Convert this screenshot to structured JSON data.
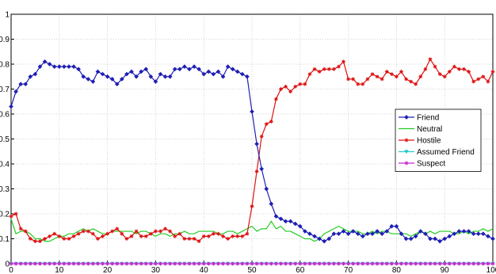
{
  "chart_data": {
    "type": "line",
    "title": "",
    "xlabel": "",
    "ylabel": "",
    "xlim": [
      0,
      100
    ],
    "ylim": [
      0,
      1
    ],
    "grid": true,
    "legend_position": "right",
    "x_ticks": [
      0,
      10,
      20,
      30,
      40,
      50,
      60,
      70,
      80,
      90,
      100
    ],
    "y_ticks": [
      0,
      0.1,
      0.2,
      0.3,
      0.4,
      0.5,
      0.6,
      0.7,
      0.8,
      0.9,
      1
    ],
    "x_tick_labels": [
      "0",
      "10",
      "20",
      "30",
      "40",
      "50",
      "60",
      "70",
      "80",
      "90",
      "100"
    ],
    "y_tick_labels": [
      "0",
      "0.1",
      "0.2",
      "0.3",
      "0.4",
      "0.5",
      "0.6",
      "0.7",
      "0.8",
      "0.9",
      "1"
    ],
    "x": [
      0,
      1,
      2,
      3,
      4,
      5,
      6,
      7,
      8,
      9,
      10,
      11,
      12,
      13,
      14,
      15,
      16,
      17,
      18,
      19,
      20,
      21,
      22,
      23,
      24,
      25,
      26,
      27,
      28,
      29,
      30,
      31,
      32,
      33,
      34,
      35,
      36,
      37,
      38,
      39,
      40,
      41,
      42,
      43,
      44,
      45,
      46,
      47,
      48,
      49,
      50,
      51,
      52,
      53,
      54,
      55,
      56,
      57,
      58,
      59,
      60,
      61,
      62,
      63,
      64,
      65,
      66,
      67,
      68,
      69,
      70,
      71,
      72,
      73,
      74,
      75,
      76,
      77,
      78,
      79,
      80,
      81,
      82,
      83,
      84,
      85,
      86,
      87,
      88,
      89,
      90,
      91,
      92,
      93,
      94,
      95,
      96,
      97,
      98,
      99,
      100
    ],
    "series": [
      {
        "name": "Friend",
        "color": "#1f1fb4",
        "marker": "diamond",
        "values": [
          0.63,
          0.69,
          0.72,
          0.72,
          0.75,
          0.76,
          0.79,
          0.81,
          0.8,
          0.79,
          0.79,
          0.79,
          0.79,
          0.79,
          0.78,
          0.75,
          0.74,
          0.73,
          0.77,
          0.76,
          0.75,
          0.74,
          0.72,
          0.74,
          0.76,
          0.77,
          0.75,
          0.77,
          0.78,
          0.75,
          0.73,
          0.76,
          0.75,
          0.75,
          0.78,
          0.78,
          0.79,
          0.78,
          0.79,
          0.78,
          0.76,
          0.77,
          0.76,
          0.77,
          0.75,
          0.79,
          0.78,
          0.77,
          0.76,
          0.75,
          0.61,
          0.48,
          0.38,
          0.3,
          0.24,
          0.19,
          0.18,
          0.17,
          0.17,
          0.16,
          0.15,
          0.13,
          0.12,
          0.11,
          0.1,
          0.09,
          0.1,
          0.12,
          0.12,
          0.13,
          0.12,
          0.13,
          0.12,
          0.11,
          0.12,
          0.12,
          0.13,
          0.12,
          0.13,
          0.15,
          0.15,
          0.12,
          0.1,
          0.1,
          0.11,
          0.13,
          0.12,
          0.1,
          0.1,
          0.09,
          0.1,
          0.11,
          0.12,
          0.13,
          0.13,
          0.13,
          0.12,
          0.12,
          0.12,
          0.11,
          0.1
        ]
      },
      {
        "name": "Neutral",
        "color": "#22cc22",
        "marker": "none",
        "values": [
          0.18,
          0.12,
          0.13,
          0.13,
          0.12,
          0.1,
          0.1,
          0.09,
          0.09,
          0.1,
          0.11,
          0.11,
          0.12,
          0.12,
          0.13,
          0.14,
          0.13,
          0.14,
          0.13,
          0.12,
          0.12,
          0.13,
          0.13,
          0.13,
          0.13,
          0.13,
          0.12,
          0.13,
          0.13,
          0.12,
          0.11,
          0.12,
          0.12,
          0.11,
          0.12,
          0.12,
          0.13,
          0.12,
          0.12,
          0.13,
          0.13,
          0.13,
          0.13,
          0.12,
          0.12,
          0.13,
          0.13,
          0.12,
          0.13,
          0.14,
          0.15,
          0.13,
          0.14,
          0.14,
          0.17,
          0.14,
          0.15,
          0.13,
          0.13,
          0.12,
          0.11,
          0.1,
          0.1,
          0.09,
          0.1,
          0.12,
          0.13,
          0.14,
          0.15,
          0.14,
          0.13,
          0.13,
          0.13,
          0.12,
          0.12,
          0.13,
          0.12,
          0.13,
          0.13,
          0.12,
          0.12,
          0.12,
          0.12,
          0.11,
          0.12,
          0.13,
          0.12,
          0.13,
          0.12,
          0.13,
          0.13,
          0.13,
          0.12,
          0.12,
          0.13,
          0.12,
          0.13,
          0.13,
          0.14,
          0.13,
          0.14
        ]
      },
      {
        "name": "Hostile",
        "color": "#dd1111",
        "marker": "star",
        "values": [
          0.19,
          0.2,
          0.14,
          0.13,
          0.1,
          0.09,
          0.09,
          0.1,
          0.11,
          0.12,
          0.11,
          0.1,
          0.1,
          0.11,
          0.12,
          0.13,
          0.13,
          0.12,
          0.1,
          0.11,
          0.12,
          0.13,
          0.14,
          0.12,
          0.1,
          0.11,
          0.13,
          0.11,
          0.11,
          0.12,
          0.13,
          0.13,
          0.14,
          0.13,
          0.11,
          0.12,
          0.1,
          0.1,
          0.1,
          0.09,
          0.11,
          0.11,
          0.12,
          0.12,
          0.11,
          0.1,
          0.11,
          0.11,
          0.11,
          0.12,
          0.23,
          0.37,
          0.51,
          0.56,
          0.57,
          0.66,
          0.7,
          0.71,
          0.69,
          0.71,
          0.72,
          0.72,
          0.76,
          0.78,
          0.77,
          0.78,
          0.78,
          0.78,
          0.79,
          0.81,
          0.74,
          0.74,
          0.72,
          0.72,
          0.74,
          0.76,
          0.75,
          0.74,
          0.77,
          0.76,
          0.75,
          0.77,
          0.74,
          0.73,
          0.72,
          0.75,
          0.78,
          0.82,
          0.79,
          0.76,
          0.75,
          0.77,
          0.79,
          0.78,
          0.78,
          0.77,
          0.73,
          0.74,
          0.75,
          0.73,
          0.77
        ]
      },
      {
        "name": "Assumed Friend",
        "color": "#22cccc",
        "marker": "triangle-down",
        "values": [
          0,
          0,
          0,
          0,
          0,
          0,
          0,
          0,
          0,
          0,
          0,
          0,
          0,
          0,
          0,
          0,
          0,
          0,
          0,
          0,
          0,
          0,
          0,
          0,
          0,
          0,
          0,
          0,
          0,
          0,
          0,
          0,
          0,
          0,
          0,
          0,
          0,
          0,
          0,
          0,
          0,
          0,
          0,
          0,
          0,
          0,
          0,
          0,
          0,
          0,
          0,
          0,
          0,
          0,
          0,
          0,
          0,
          0,
          0,
          0,
          0,
          0,
          0,
          0,
          0,
          0,
          0,
          0,
          0,
          0,
          0,
          0,
          0,
          0,
          0,
          0,
          0,
          0,
          0,
          0,
          0,
          0,
          0,
          0,
          0,
          0,
          0,
          0,
          0,
          0,
          0,
          0,
          0,
          0,
          0,
          0,
          0,
          0,
          0,
          0,
          0
        ]
      },
      {
        "name": "Suspect",
        "color": "#cc22cc",
        "marker": "star",
        "values": [
          0,
          0,
          0,
          0,
          0,
          0,
          0,
          0,
          0,
          0,
          0,
          0,
          0,
          0,
          0,
          0,
          0,
          0,
          0,
          0,
          0,
          0,
          0,
          0,
          0,
          0,
          0,
          0,
          0,
          0,
          0,
          0,
          0,
          0,
          0,
          0,
          0,
          0,
          0,
          0,
          0,
          0,
          0,
          0,
          0,
          0,
          0,
          0,
          0,
          0,
          0,
          0,
          0,
          0,
          0,
          0,
          0,
          0,
          0,
          0,
          0,
          0,
          0,
          0,
          0,
          0,
          0,
          0,
          0,
          0,
          0,
          0,
          0,
          0,
          0,
          0,
          0,
          0,
          0,
          0,
          0,
          0,
          0,
          0,
          0,
          0,
          0,
          0,
          0,
          0,
          0,
          0,
          0,
          0,
          0,
          0,
          0,
          0,
          0,
          0,
          0
        ]
      }
    ]
  }
}
